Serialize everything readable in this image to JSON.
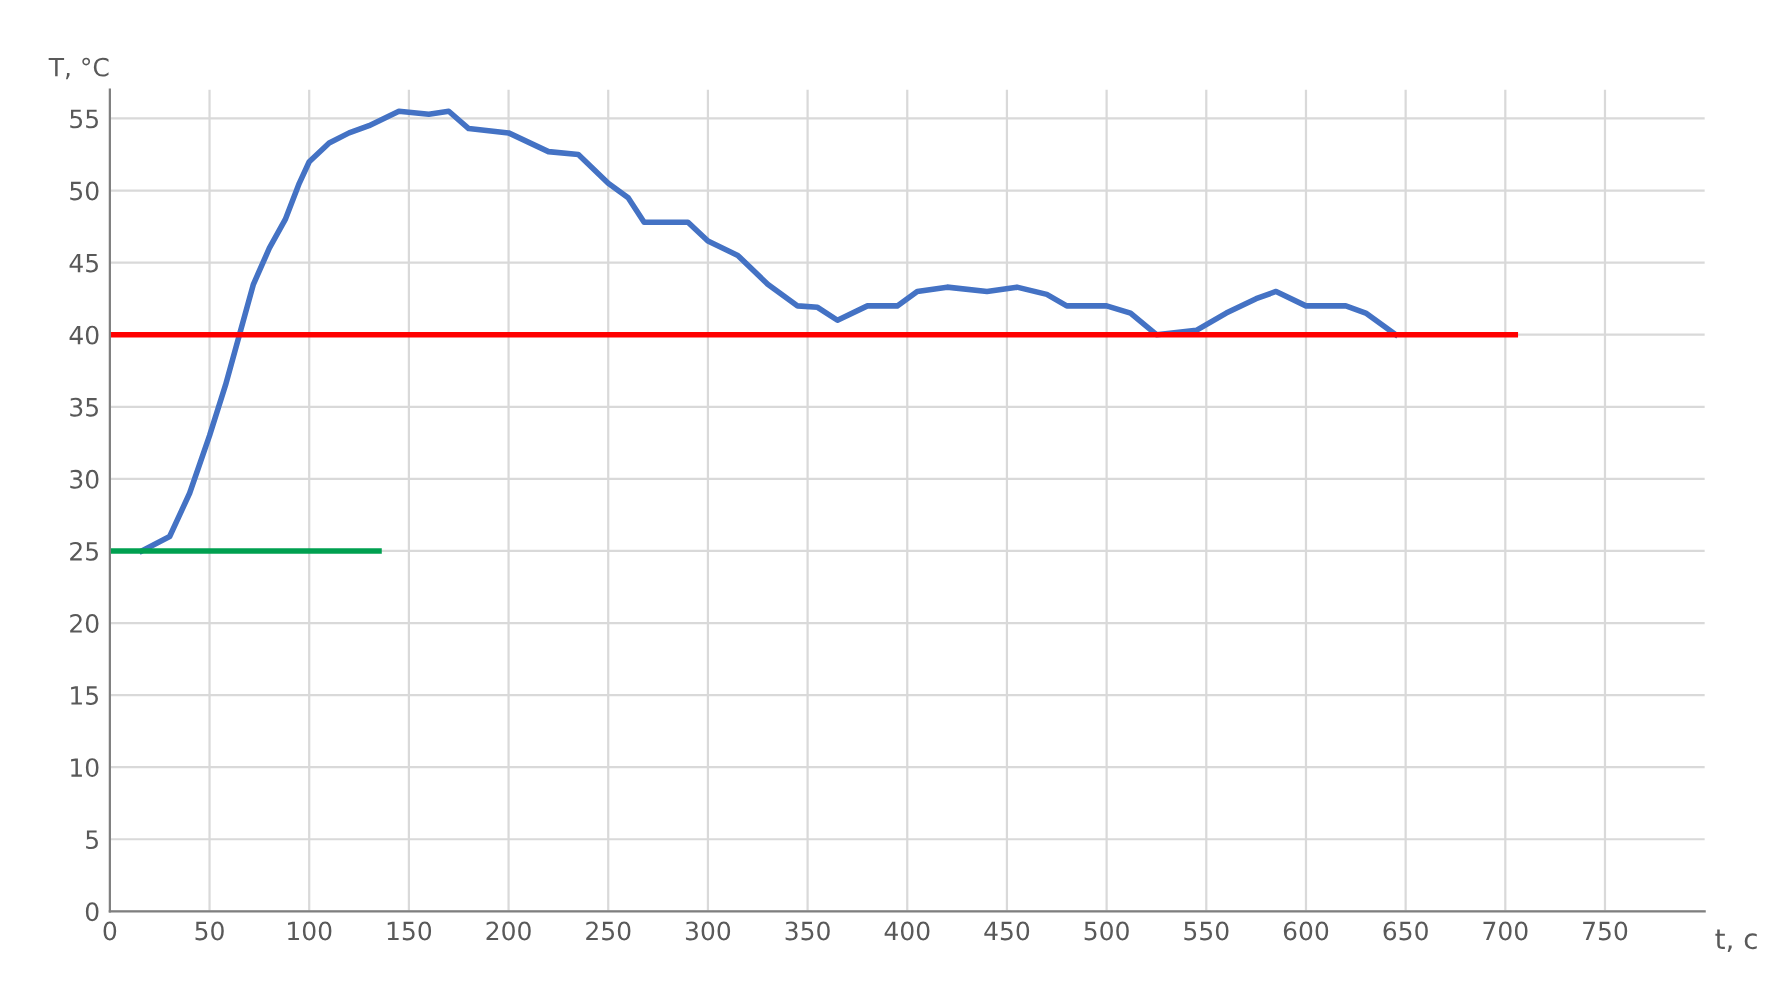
{
  "chart_data": {
    "type": "line",
    "xlabel": "t, c",
    "ylabel": "T, °C",
    "xlim": [
      0,
      800
    ],
    "ylim": [
      0,
      57
    ],
    "xticks": [
      0,
      50,
      100,
      150,
      200,
      250,
      300,
      350,
      400,
      450,
      500,
      550,
      600,
      650,
      700,
      750
    ],
    "yticks": [
      0,
      5,
      10,
      15,
      20,
      25,
      30,
      35,
      40,
      45,
      50,
      55
    ],
    "grid": true,
    "legend": false,
    "marker": "none",
    "line_style": "solid",
    "series": [
      {
        "color": "#4472c4",
        "x": [
          16,
          30,
          40,
          50,
          58,
          65,
          72,
          80,
          88,
          95,
          100,
          110,
          120,
          130,
          145,
          160,
          170,
          180,
          200,
          220,
          235,
          250,
          260,
          268,
          290,
          300,
          315,
          330,
          345,
          355,
          365,
          380,
          395,
          405,
          420,
          440,
          455,
          470,
          480,
          500,
          512,
          525,
          545,
          560,
          575,
          585,
          600,
          620,
          630,
          645
        ],
        "values": [
          25,
          26,
          29,
          33,
          36.5,
          40,
          43.5,
          46,
          48,
          50.5,
          52,
          53.3,
          54,
          54.5,
          55.5,
          55.3,
          55.5,
          54.3,
          54,
          52.7,
          52.5,
          50.5,
          49.5,
          47.8,
          47.8,
          46.5,
          45.5,
          43.5,
          42,
          41.9,
          41,
          42,
          42,
          43,
          43.3,
          43,
          43.3,
          42.8,
          42,
          42,
          41.5,
          40,
          40.3,
          41.5,
          42.5,
          43,
          42,
          42,
          41.5,
          40
        ]
      },
      {
        "color": "#ff0000",
        "x": [
          0,
          705
        ],
        "values": [
          40,
          40
        ]
      },
      {
        "color": "#00a050",
        "x": [
          0,
          135
        ],
        "values": [
          25,
          25
        ]
      }
    ]
  }
}
